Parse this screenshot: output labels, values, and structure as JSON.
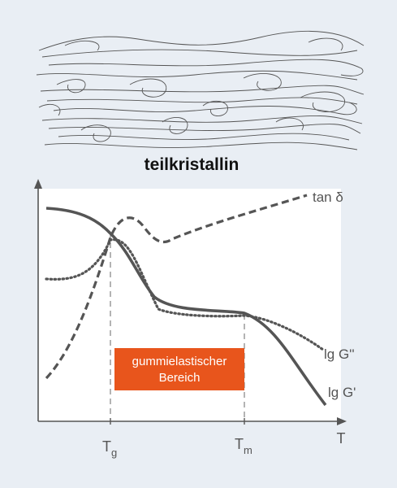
{
  "title": "teilkristallin",
  "colors": {
    "background": "#e9eef4",
    "chart_background": "#ffffff",
    "curve": "#555555",
    "region_box": "#e8551c",
    "region_text": "#ffffff"
  },
  "curves": {
    "tan_delta": "tan δ",
    "g_double_prime": "lg G''",
    "g_prime": "lg G'"
  },
  "axis": {
    "x_label": "T",
    "tg_main": "T",
    "tg_sub": "g",
    "tm_main": "T",
    "tm_sub": "m"
  },
  "region": {
    "line1": "gummielastischer",
    "line2": "Bereich"
  }
}
